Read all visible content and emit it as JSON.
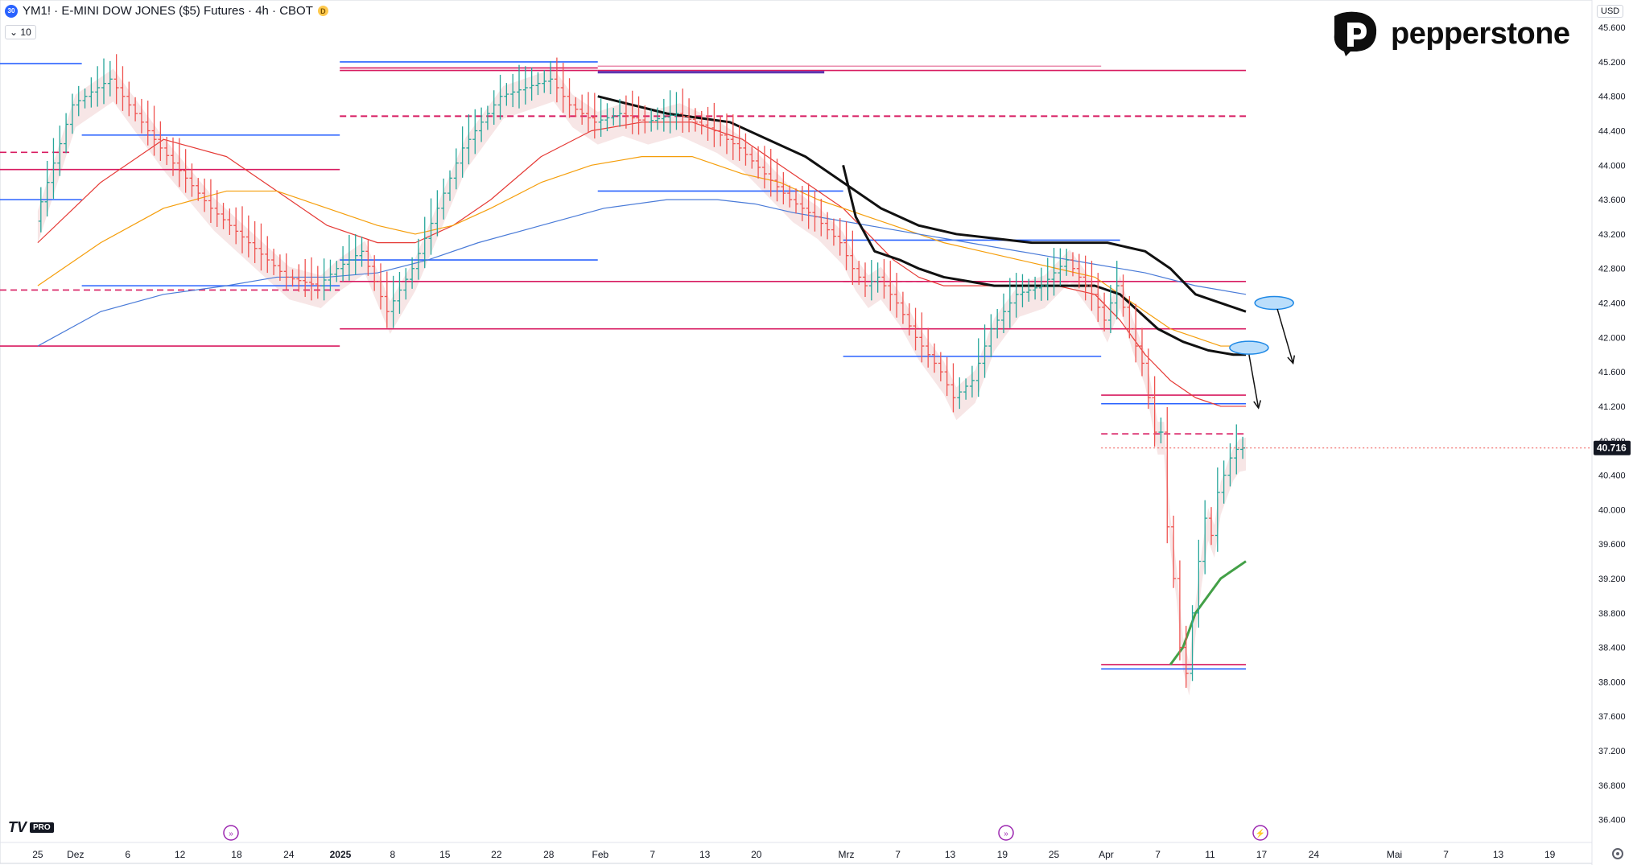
{
  "header": {
    "symbol_badge": "30",
    "title": "YM1! · E-MINI DOW JONES ($5) Futures · 4h · CBOT",
    "d_badge": "D",
    "volume_toggle": "10",
    "currency": "USD"
  },
  "brand": {
    "name": "pepperstone",
    "platform": "TV",
    "platform_tier": "PRO"
  },
  "colors": {
    "up": "#26a69a",
    "down": "#ef5350",
    "blue_level": "#2962ff",
    "magenta_level": "#d81b60",
    "purple_level": "#5e35b1",
    "ma_red": "#e53935",
    "ma_orange": "#f59e0b",
    "ma_blue": "#4a7bd8",
    "ma_black": "#111111",
    "ma_green": "#43a047",
    "ribbon": "#e8b7b7"
  },
  "icons": [
    "replay-icon",
    "replay-icon",
    "lightning-icon",
    "settings-icon",
    "arrow-icon"
  ],
  "chart_data": {
    "type": "line",
    "title": "YM1! · E-MINI DOW JONES ($5) Futures · 4h · CBOT",
    "last_price": "40.716",
    "ylim": [
      36200,
      45900
    ],
    "y_ticks": [
      "45.600",
      "45.200",
      "44.800",
      "44.400",
      "44.000",
      "43.600",
      "43.200",
      "42.800",
      "42.400",
      "42.000",
      "41.600",
      "41.200",
      "40.800",
      "40.400",
      "40.000",
      "39.600",
      "39.200",
      "38.800",
      "38.400",
      "38.000",
      "37.600",
      "37.200",
      "36.800",
      "36.400"
    ],
    "x_ticks": [
      {
        "label": "25",
        "x": 0.0
      },
      {
        "label": "Dez",
        "x": 6.0
      },
      {
        "label": "6",
        "x": 14.3
      },
      {
        "label": "12",
        "x": 22.6
      },
      {
        "label": "18",
        "x": 31.6
      },
      {
        "label": "24",
        "x": 39.9
      },
      {
        "label": "2025",
        "x": 48.1
      },
      {
        "label": "8",
        "x": 56.4
      },
      {
        "label": "15",
        "x": 64.7
      },
      {
        "label": "22",
        "x": 72.9
      },
      {
        "label": "28",
        "x": 81.2
      },
      {
        "label": "Feb",
        "x": 89.4
      },
      {
        "label": "7",
        "x": 97.7
      },
      {
        "label": "13",
        "x": 106.0
      },
      {
        "label": "20",
        "x": 114.2
      },
      {
        "label": "Mrz",
        "x": 128.5
      },
      {
        "label": "7",
        "x": 136.7
      },
      {
        "label": "13",
        "x": 145.0
      },
      {
        "label": "19",
        "x": 153.3
      },
      {
        "label": "25",
        "x": 161.5
      },
      {
        "label": "Apr",
        "x": 169.8
      },
      {
        "label": "7",
        "x": 178.0
      },
      {
        "label": "11",
        "x": 186.3
      },
      {
        "label": "17",
        "x": 194.5
      },
      {
        "label": "24",
        "x": 202.8
      },
      {
        "label": "Mai",
        "x": 215.6
      },
      {
        "label": "7",
        "x": 223.8
      },
      {
        "label": "13",
        "x": 232.1
      },
      {
        "label": "19",
        "x": 240.3
      }
    ],
    "x_range": [
      -6,
      247
    ],
    "series": [
      {
        "role": "price",
        "x": [
          0,
          6,
          12,
          20,
          28,
          34,
          40,
          45,
          48,
          52,
          56,
          60,
          64,
          68,
          74,
          78,
          82,
          85,
          89,
          93,
          97,
          102,
          108,
          112,
          116,
          120,
          124,
          128,
          130,
          132,
          134,
          137,
          140,
          144,
          146,
          149,
          152,
          156,
          160,
          164,
          168,
          170,
          172,
          174,
          176,
          178,
          179,
          180,
          181,
          182,
          183,
          184,
          185,
          186,
          187,
          188,
          189,
          190,
          191,
          192
        ],
        "values": [
          43350,
          44700,
          45000,
          44200,
          43500,
          43100,
          42700,
          42600,
          42800,
          43000,
          42300,
          42800,
          43500,
          44200,
          44800,
          44900,
          45000,
          44700,
          44500,
          44600,
          44500,
          44600,
          44400,
          44200,
          43900,
          43600,
          43400,
          43100,
          42800,
          42600,
          42700,
          42400,
          42000,
          41600,
          41300,
          41500,
          42100,
          42500,
          42600,
          42900,
          42500,
          42200,
          42600,
          42100,
          41700,
          40900,
          40900,
          39800,
          39200,
          38400,
          38100,
          38800,
          39400,
          39900,
          39700,
          40200,
          40400,
          40600,
          40700,
          40716
        ]
      },
      {
        "role": "moving-average-red",
        "x": [
          0,
          10,
          20,
          30,
          38,
          46,
          54,
          60,
          66,
          72,
          80,
          88,
          96,
          104,
          112,
          118,
          124,
          128,
          132,
          136,
          140,
          144,
          150,
          156,
          162,
          168,
          172,
          176,
          180,
          184,
          188,
          192
        ],
        "values": [
          43100,
          43800,
          44300,
          44100,
          43700,
          43300,
          43100,
          43100,
          43300,
          43600,
          44100,
          44400,
          44500,
          44500,
          44300,
          44000,
          43700,
          43500,
          43200,
          42900,
          42700,
          42600,
          42600,
          42600,
          42600,
          42500,
          42200,
          41800,
          41500,
          41300,
          41200,
          41200
        ]
      },
      {
        "role": "moving-average-orange",
        "x": [
          0,
          10,
          20,
          30,
          38,
          46,
          54,
          60,
          66,
          72,
          80,
          88,
          96,
          104,
          112,
          118,
          124,
          128,
          132,
          136,
          140,
          144,
          150,
          156,
          162,
          168,
          172,
          176,
          180,
          184,
          188,
          192
        ],
        "values": [
          42600,
          43100,
          43500,
          43700,
          43700,
          43500,
          43300,
          43200,
          43300,
          43500,
          43800,
          44000,
          44100,
          44100,
          43900,
          43800,
          43600,
          43500,
          43400,
          43300,
          43200,
          43100,
          43000,
          42900,
          42800,
          42700,
          42500,
          42300,
          42100,
          42000,
          41900,
          41900
        ]
      },
      {
        "role": "moving-average-blue",
        "x": [
          0,
          10,
          20,
          30,
          38,
          46,
          54,
          62,
          70,
          80,
          90,
          100,
          108,
          114,
          120,
          128,
          136,
          144,
          152,
          160,
          168,
          176,
          184,
          192
        ],
        "values": [
          41900,
          42300,
          42500,
          42600,
          42700,
          42700,
          42750,
          42900,
          43100,
          43300,
          43500,
          43600,
          43600,
          43550,
          43450,
          43350,
          43250,
          43150,
          43050,
          42950,
          42850,
          42750,
          42600,
          42500
        ]
      },
      {
        "role": "moving-average-black",
        "x": [
          89,
          100,
          110,
          116,
          122,
          128,
          134,
          140,
          146,
          152,
          158,
          164,
          170,
          176,
          180,
          184,
          188,
          192
        ],
        "values": [
          44800,
          44600,
          44500,
          44300,
          44100,
          43800,
          43500,
          43300,
          43200,
          43150,
          43100,
          43100,
          43100,
          43000,
          42800,
          42500,
          42400,
          42300
        ]
      },
      {
        "role": "moving-average-black-2",
        "x": [
          128,
          130,
          133,
          137,
          140,
          144,
          148,
          152,
          156,
          160,
          164,
          168,
          170,
          172,
          175,
          178,
          182,
          186,
          190,
          192
        ],
        "values": [
          44000,
          43400,
          43000,
          42900,
          42800,
          42700,
          42650,
          42600,
          42600,
          42600,
          42600,
          42600,
          42550,
          42500,
          42300,
          42100,
          41950,
          41850,
          41800,
          41800
        ]
      },
      {
        "role": "moving-average-green",
        "x": [
          180,
          182,
          184,
          186,
          188,
          190,
          192
        ],
        "values": [
          38200,
          38400,
          38800,
          39000,
          39200,
          39300,
          39400
        ]
      }
    ],
    "levels": [
      {
        "price": 45180,
        "x0": -6,
        "x1": 7,
        "color": "blue"
      },
      {
        "price": 44350,
        "x0": 7,
        "x1": 48,
        "color": "blue"
      },
      {
        "price": 44150,
        "x0": -6,
        "x1": 5,
        "color": "magenta",
        "style": "dashed"
      },
      {
        "price": 43950,
        "x0": -6,
        "x1": 48,
        "color": "magenta"
      },
      {
        "price": 43600,
        "x0": -6,
        "x1": 7,
        "color": "blue"
      },
      {
        "price": 42900,
        "x0": 48,
        "x1": 89,
        "color": "blue"
      },
      {
        "price": 42600,
        "x0": 7,
        "x1": 48,
        "color": "blue"
      },
      {
        "price": 42550,
        "x0": -6,
        "x1": 48,
        "color": "magenta",
        "style": "dashed"
      },
      {
        "price": 41900,
        "x0": -6,
        "x1": 48,
        "color": "magenta"
      },
      {
        "price": 45200,
        "x0": 48,
        "x1": 89,
        "color": "blue"
      },
      {
        "price": 45130,
        "x0": 48,
        "x1": 89,
        "color": "magenta"
      },
      {
        "price": 45100,
        "x0": 48,
        "x1": 89,
        "color": "magenta"
      },
      {
        "price": 45150,
        "x0": 89,
        "x1": 169,
        "color": "magenta",
        "style": "light"
      },
      {
        "price": 45100,
        "x0": 89,
        "x1": 192,
        "color": "magenta"
      },
      {
        "price": 45080,
        "x0": 89,
        "x1": 125,
        "color": "purple",
        "width": 3
      },
      {
        "price": 44570,
        "x0": 48,
        "x1": 192,
        "color": "magenta",
        "style": "dashed",
        "width": 2
      },
      {
        "price": 43700,
        "x0": 89,
        "x1": 128,
        "color": "blue"
      },
      {
        "price": 43130,
        "x0": 128,
        "x1": 172,
        "color": "blue"
      },
      {
        "price": 42650,
        "x0": 48,
        "x1": 192,
        "color": "magenta"
      },
      {
        "price": 42650,
        "x0": 128,
        "x1": 169,
        "color": "magenta",
        "style": "dashed"
      },
      {
        "price": 42100,
        "x0": 48,
        "x1": 192,
        "color": "magenta"
      },
      {
        "price": 41780,
        "x0": 128,
        "x1": 169,
        "color": "blue"
      },
      {
        "price": 41330,
        "x0": 169,
        "x1": 192,
        "color": "magenta"
      },
      {
        "price": 41230,
        "x0": 169,
        "x1": 192,
        "color": "blue"
      },
      {
        "price": 40880,
        "x0": 169,
        "x1": 192,
        "color": "magenta",
        "style": "dashed"
      },
      {
        "price": 38200,
        "x0": 169,
        "x1": 192,
        "color": "magenta"
      },
      {
        "price": 38150,
        "x0": 169,
        "x1": 192,
        "color": "blue"
      }
    ],
    "annotations": [
      {
        "type": "ellipse",
        "x": 196.5,
        "price": 42400
      },
      {
        "type": "ellipse",
        "x": 192.5,
        "price": 41880
      },
      {
        "type": "arrow",
        "x0": 197,
        "p0": 42330,
        "x1": 199.5,
        "p1": 41700
      },
      {
        "type": "arrow",
        "x0": 192.5,
        "p0": 41800,
        "x1": 194,
        "p1": 41180
      }
    ],
    "grid": false,
    "legend": "none"
  }
}
